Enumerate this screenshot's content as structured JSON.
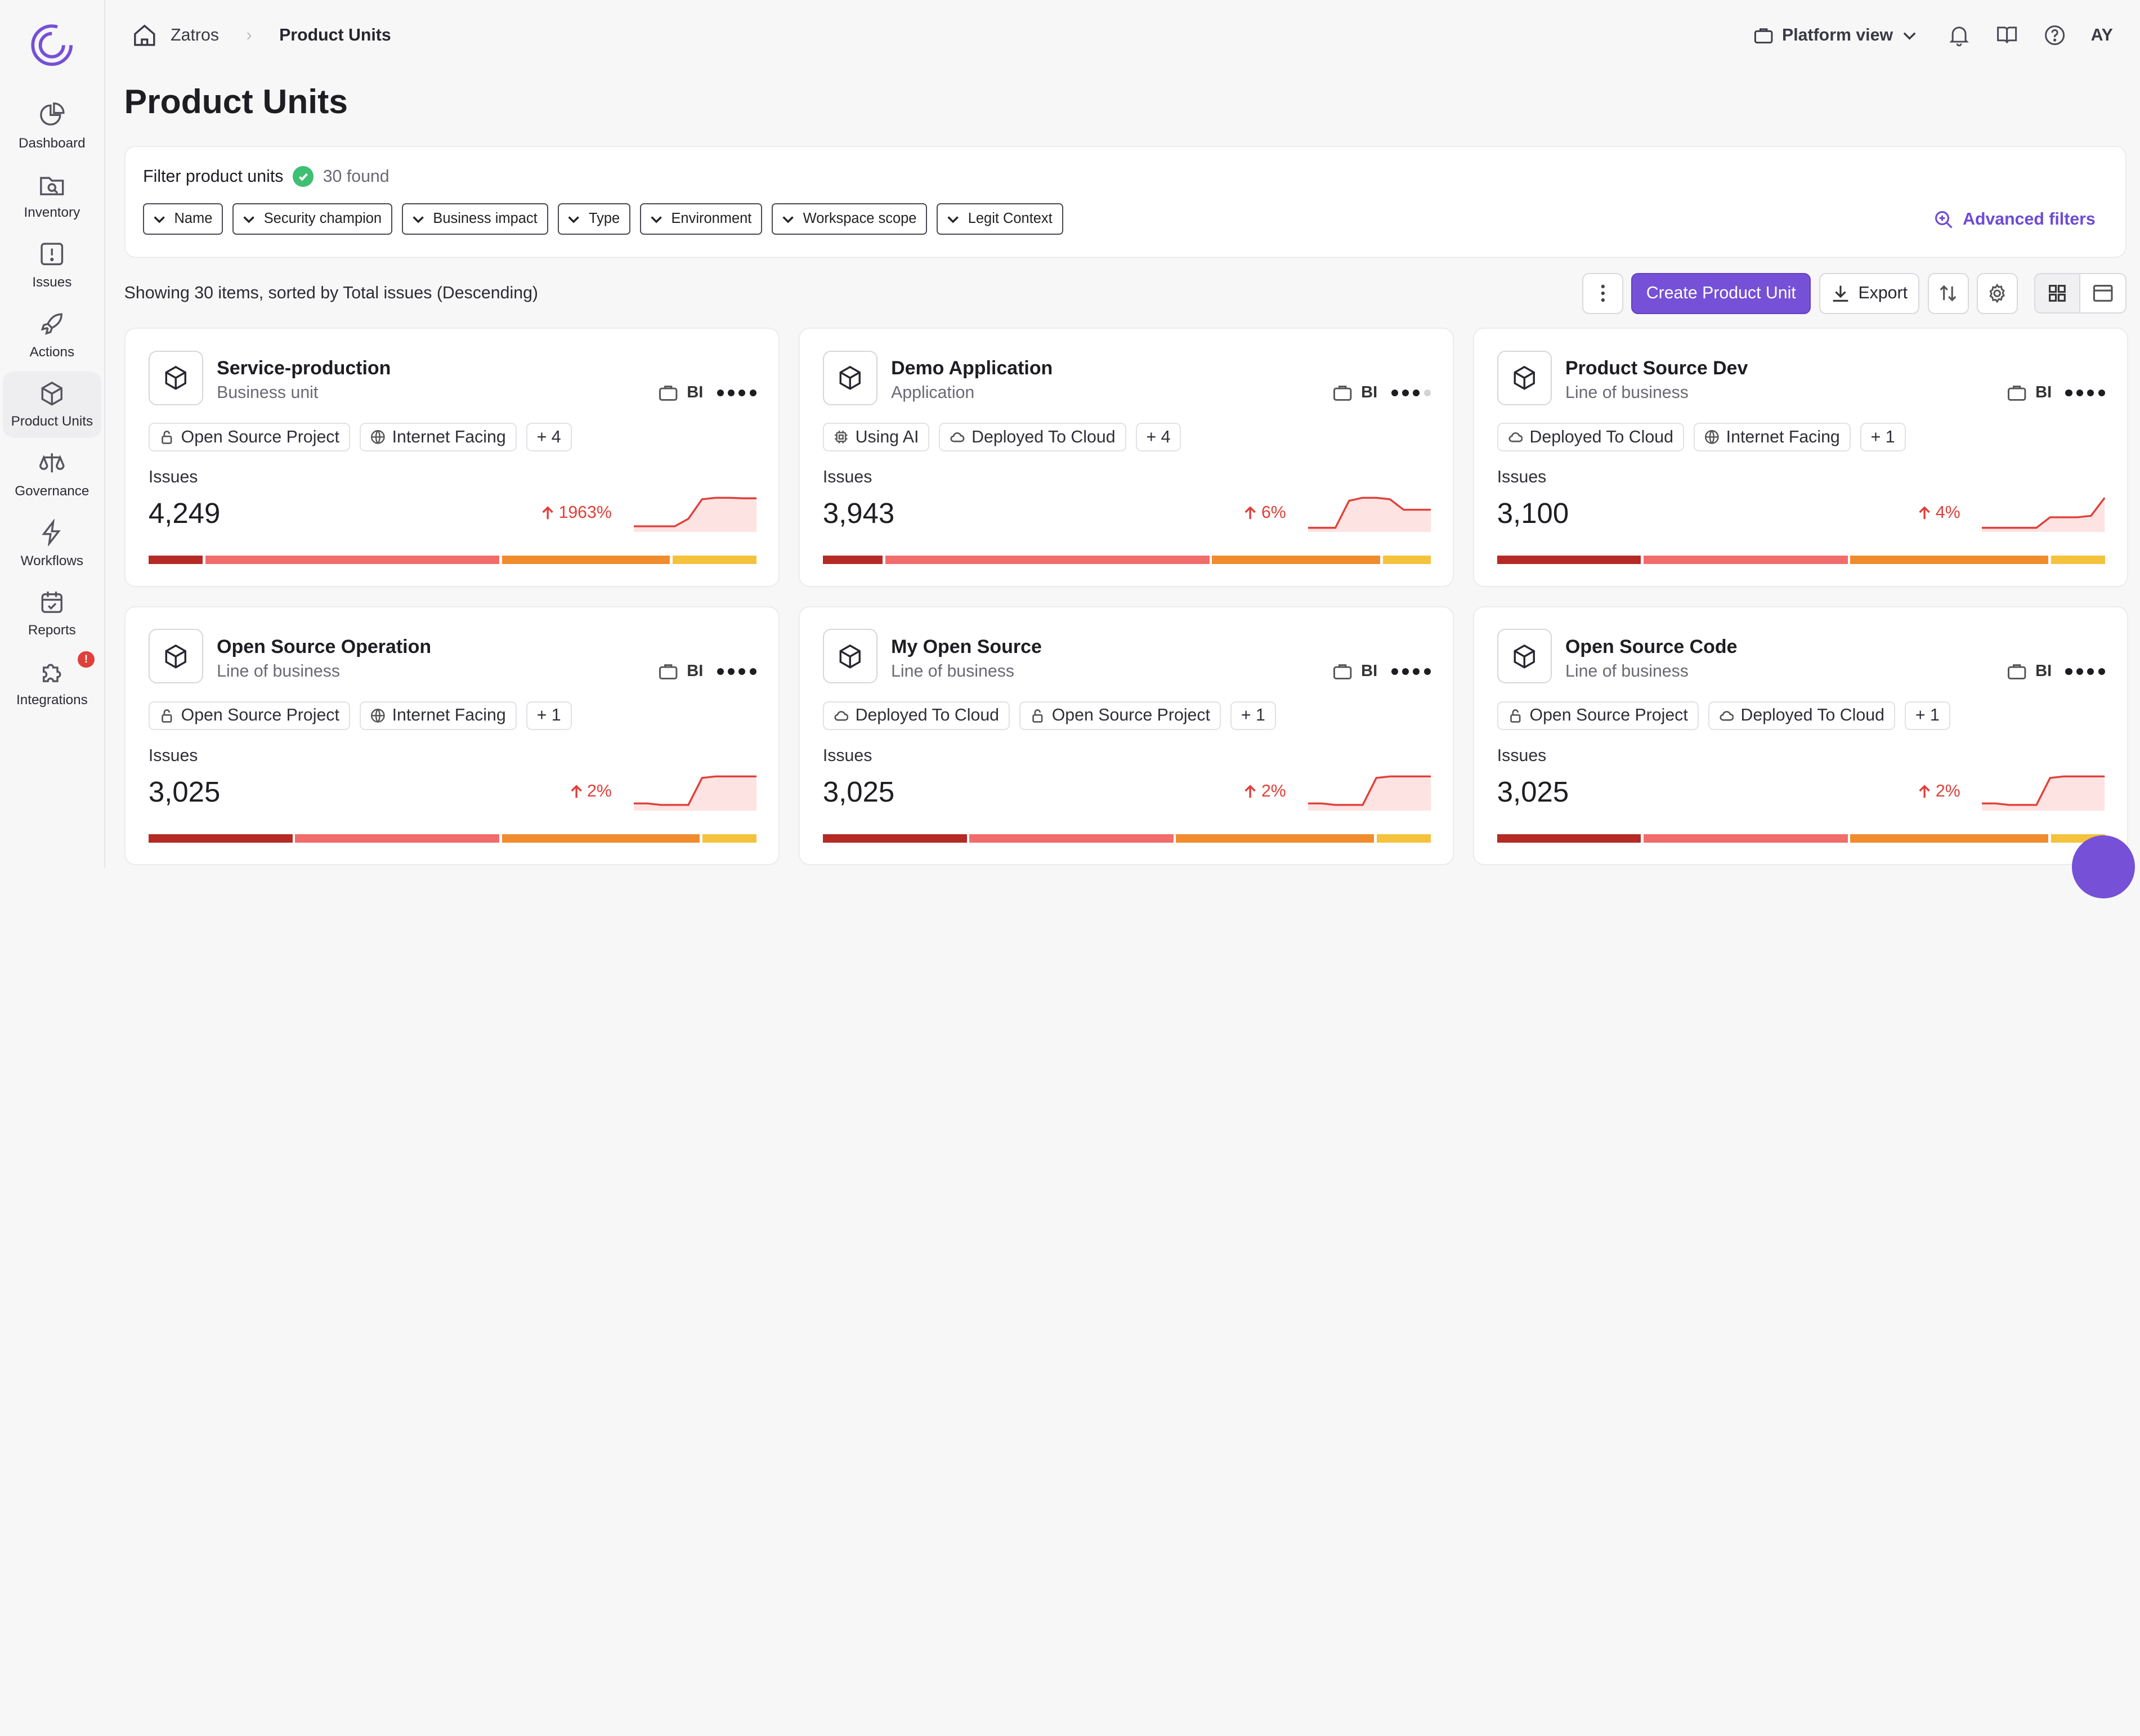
{
  "nav": {
    "items": [
      {
        "label": "Dashboard",
        "icon": "pie-chart-icon"
      },
      {
        "label": "Inventory",
        "icon": "folder-search-icon"
      },
      {
        "label": "Issues",
        "icon": "alert-square-icon"
      },
      {
        "label": "Actions",
        "icon": "rocket-icon"
      },
      {
        "label": "Product Units",
        "icon": "cube-icon"
      },
      {
        "label": "Governance",
        "icon": "scale-icon"
      },
      {
        "label": "Workflows",
        "icon": "lightning-icon"
      },
      {
        "label": "Reports",
        "icon": "calendar-check-icon"
      },
      {
        "label": "Integrations",
        "icon": "puzzle-icon",
        "badge": "!"
      }
    ],
    "active": "Product Units"
  },
  "breadcrumb": {
    "home": "Zatros",
    "current": "Product Units"
  },
  "topbar": {
    "platform": "Platform view",
    "avatar": "AY"
  },
  "page": {
    "title": "Product Units"
  },
  "filters": {
    "label": "Filter product units",
    "found": "30 found",
    "chips": [
      "Name",
      "Security champion",
      "Business impact",
      "Type",
      "Environment",
      "Workspace scope",
      "Legit Context"
    ],
    "advanced": "Advanced filters"
  },
  "toolbar": {
    "showing": "Showing 30 items, sorted by Total issues (Descending)",
    "create": "Create Product Unit",
    "export": "Export"
  },
  "colors": {
    "accent": "#7650d6",
    "critical": "#b52a24",
    "high": "#f06d6b",
    "medium": "#f08c2e",
    "low": "#f4c23c",
    "trend_up": "#e0403a"
  },
  "cards": [
    {
      "name": "Service-production",
      "type": "Business unit",
      "bi": "BI",
      "bi_level": 4,
      "tags": [
        {
          "label": "Open Source Project",
          "icon": "open-lock-icon"
        },
        {
          "label": "Internet Facing",
          "icon": "globe-icon"
        }
      ],
      "more": "+ 4",
      "issues_label": "Issues",
      "count": "4,249",
      "trend": "1963%",
      "spark": [
        0.05,
        0.05,
        0.05,
        0.05,
        0.3,
        0.95,
        1,
        1,
        0.98,
        0.98
      ],
      "severity": [
        0.09,
        0.49,
        0.28,
        0.14
      ]
    },
    {
      "name": "Demo Application",
      "type": "Application",
      "bi": "BI",
      "bi_level": 3,
      "tags": [
        {
          "label": "Using AI",
          "icon": "chip-icon"
        },
        {
          "label": "Deployed To Cloud",
          "icon": "cloud-icon"
        }
      ],
      "more": "+ 4",
      "issues_label": "Issues",
      "count": "3,943",
      "trend": "6%",
      "spark": [
        0.0,
        0.0,
        0.0,
        0.9,
        1,
        1,
        0.95,
        0.6,
        0.6,
        0.6
      ],
      "severity": [
        0.1,
        0.54,
        0.28,
        0.08
      ]
    },
    {
      "name": "Product Source Dev",
      "type": "Line of business",
      "bi": "BI",
      "bi_level": 4,
      "tags": [
        {
          "label": "Deployed To Cloud",
          "icon": "cloud-icon"
        },
        {
          "label": "Internet Facing",
          "icon": "globe-icon"
        }
      ],
      "more": "+ 1",
      "issues_label": "Issues",
      "count": "3,100",
      "trend": "4%",
      "spark": [
        0.0,
        0.0,
        0.0,
        0.0,
        0.0,
        0.35,
        0.35,
        0.35,
        0.4,
        1
      ],
      "severity": [
        0.24,
        0.34,
        0.33,
        0.09
      ]
    },
    {
      "name": "Open Source Operation",
      "type": "Line of business",
      "bi": "BI",
      "bi_level": 4,
      "tags": [
        {
          "label": "Open Source Project",
          "icon": "open-lock-icon"
        },
        {
          "label": "Internet Facing",
          "icon": "globe-icon"
        }
      ],
      "more": "+ 1",
      "issues_label": "Issues",
      "count": "3,025",
      "trend": "2%",
      "spark": [
        0.1,
        0.1,
        0.05,
        0.05,
        0.05,
        0.95,
        1,
        1,
        1,
        1
      ],
      "severity": [
        0.24,
        0.34,
        0.33,
        0.09
      ]
    },
    {
      "name": "My Open Source",
      "type": "Line of business",
      "bi": "BI",
      "bi_level": 4,
      "tags": [
        {
          "label": "Deployed To Cloud",
          "icon": "cloud-icon"
        },
        {
          "label": "Open Source Project",
          "icon": "open-lock-icon"
        }
      ],
      "more": "+ 1",
      "issues_label": "Issues",
      "count": "3,025",
      "trend": "2%",
      "spark": [
        0.1,
        0.1,
        0.05,
        0.05,
        0.05,
        0.95,
        1,
        1,
        1,
        1
      ],
      "severity": [
        0.24,
        0.34,
        0.33,
        0.09
      ]
    },
    {
      "name": "Open Source Code",
      "type": "Line of business",
      "bi": "BI",
      "bi_level": 4,
      "tags": [
        {
          "label": "Open Source Project",
          "icon": "open-lock-icon"
        },
        {
          "label": "Deployed To Cloud",
          "icon": "cloud-icon"
        }
      ],
      "more": "+ 1",
      "issues_label": "Issues",
      "count": "3,025",
      "trend": "2%",
      "spark": [
        0.1,
        0.1,
        0.05,
        0.05,
        0.05,
        0.95,
        1,
        1,
        1,
        1
      ],
      "severity": [
        0.24,
        0.34,
        0.33,
        0.09
      ]
    }
  ]
}
